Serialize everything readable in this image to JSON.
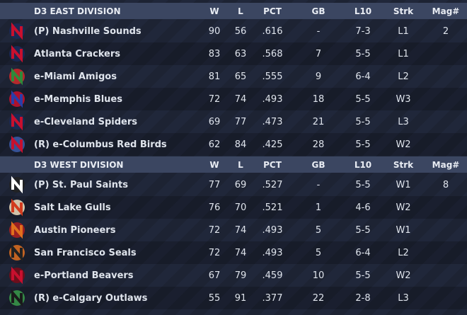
{
  "divisions": [
    {
      "title": "D3 EAST DIVISION",
      "columns": [
        "W",
        "L",
        "PCT",
        "GB",
        "L10",
        "Strk",
        "Mag#"
      ],
      "rows": [
        {
          "team": "(P) Nashville Sounds",
          "w": 90,
          "l": 56,
          "pct": ".616",
          "gb": "-",
          "l10": "7-3",
          "strk": "L1",
          "mag": 2
        },
        {
          "team": "Atlanta Crackers",
          "w": 83,
          "l": 63,
          "pct": ".568",
          "gb": 7,
          "l10": "5-5",
          "strk": "L1"
        },
        {
          "team": "e-Miami Amigos",
          "w": 81,
          "l": 65,
          "pct": ".555",
          "gb": 9,
          "l10": "6-4",
          "strk": "L2"
        },
        {
          "team": "e-Memphis Blues",
          "w": 72,
          "l": 74,
          "pct": ".493",
          "gb": 18,
          "l10": "5-5",
          "strk": "W3"
        },
        {
          "team": "e-Cleveland Spiders",
          "w": 69,
          "l": 77,
          "pct": ".473",
          "gb": 21,
          "l10": "5-5",
          "strk": "L3"
        },
        {
          "team": "(R) e-Columbus Red Birds",
          "w": 62,
          "l": 84,
          "pct": ".425",
          "gb": 28,
          "l10": "5-5",
          "strk": "W2"
        }
      ]
    },
    {
      "title": "D3 WEST DIVISION",
      "columns": [
        "W",
        "L",
        "PCT",
        "GB",
        "L10",
        "Strk",
        "Mag#"
      ],
      "rows": [
        {
          "team": "(P) St. Paul Saints",
          "w": 77,
          "l": 69,
          "pct": ".527",
          "gb": "-",
          "l10": "5-5",
          "strk": "W1",
          "mag": 8
        },
        {
          "team": "Salt Lake Gulls",
          "w": 76,
          "l": 70,
          "pct": ".521",
          "gb": 1,
          "l10": "4-6",
          "strk": "W2"
        },
        {
          "team": "Austin Pioneers",
          "w": 72,
          "l": 74,
          "pct": ".493",
          "gb": 5,
          "l10": "5-5",
          "strk": "W1"
        },
        {
          "team": "San Francisco Seals",
          "w": 72,
          "l": 74,
          "pct": ".493",
          "gb": 5,
          "l10": "6-4",
          "strk": "L2"
        },
        {
          "team": "e-Portland Beavers",
          "w": 67,
          "l": 79,
          "pct": ".459",
          "gb": 10,
          "l10": "5-5",
          "strk": "W2"
        },
        {
          "team": "(R) e-Calgary Outlaws",
          "w": 55,
          "l": 91,
          "pct": ".377",
          "gb": 22,
          "l10": "2-8",
          "strk": "L3"
        }
      ]
    }
  ]
}
